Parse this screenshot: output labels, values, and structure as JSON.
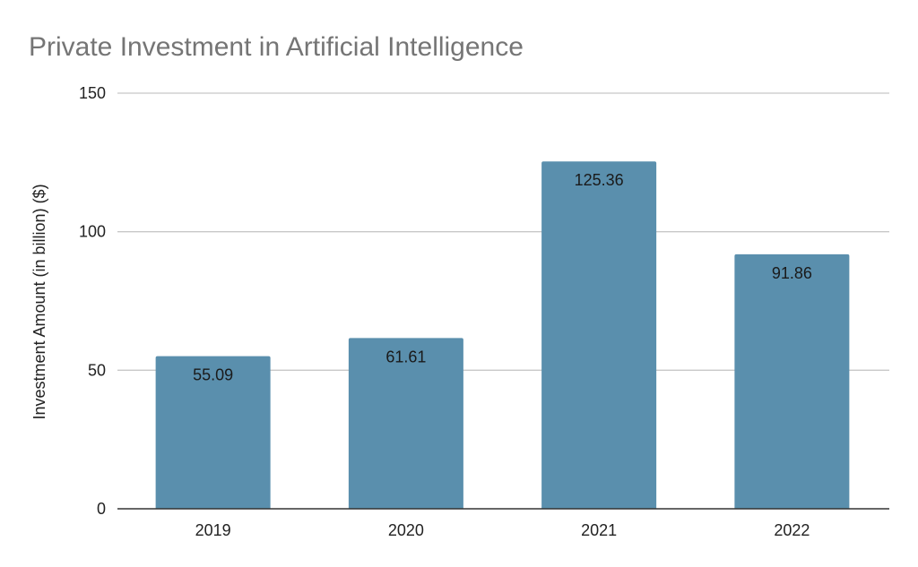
{
  "chart_data": {
    "type": "bar",
    "title": "Private Investment in Artificial Intelligence",
    "xlabel": "",
    "ylabel": "Investment Amount (in billion) ($)",
    "categories": [
      "2019",
      "2020",
      "2021",
      "2022"
    ],
    "values": [
      55.09,
      61.61,
      125.36,
      91.86
    ],
    "value_labels": [
      "55.09",
      "61.61",
      "125.36",
      "91.86"
    ],
    "ylim": [
      0,
      150
    ],
    "yticks": [
      0,
      50,
      100,
      150
    ],
    "ytick_labels": [
      "0",
      "50",
      "100",
      "150"
    ],
    "grid": true,
    "legend": "none",
    "bar_color": "#5a8fad"
  }
}
